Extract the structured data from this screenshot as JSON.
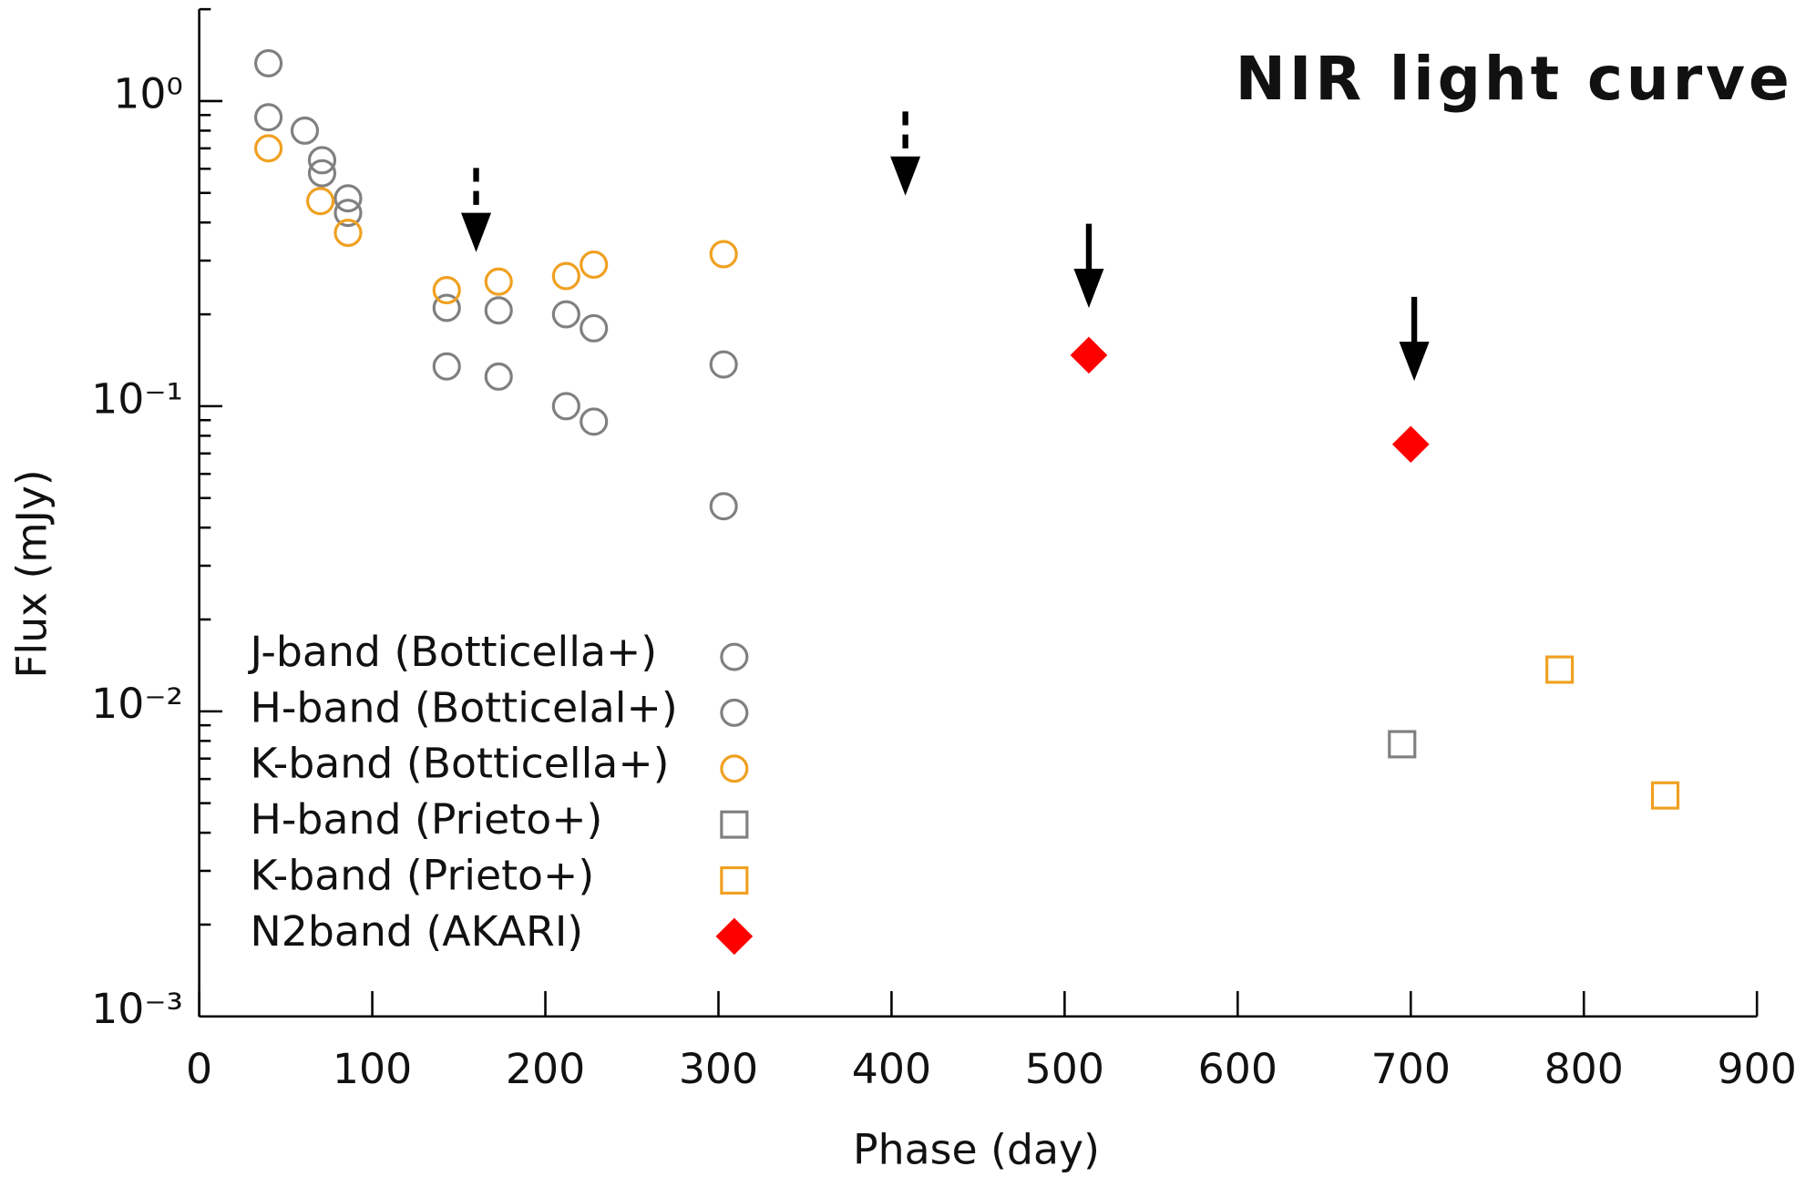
{
  "chart_data": {
    "type": "scatter",
    "title": "NIR light curve",
    "xlabel": "Phase (day)",
    "ylabel": "Flux (mJy)",
    "xlim": [
      0,
      900
    ],
    "xticks": [
      0,
      100,
      200,
      300,
      400,
      500,
      600,
      700,
      800,
      900
    ],
    "ylim": [
      0.001,
      2
    ],
    "yscale": "log",
    "yticks": [
      {
        "value": 1,
        "label": "10⁰"
      },
      {
        "value": 0.1,
        "label": "10⁻¹"
      },
      {
        "value": 0.01,
        "label": "10⁻²"
      },
      {
        "value": 0.001,
        "label": "10⁻³"
      }
    ],
    "yminorticks": [
      0.002,
      0.003,
      0.004,
      0.005,
      0.006,
      0.007,
      0.008,
      0.009,
      0.02,
      0.03,
      0.04,
      0.05,
      0.06,
      0.07,
      0.08,
      0.09,
      0.2,
      0.3,
      0.4,
      0.5,
      0.6,
      0.7,
      0.8,
      0.9,
      2
    ],
    "legend": "lower left",
    "series": [
      {
        "name": "J-band (Botticella+)",
        "color": "#808080",
        "marker": "circle",
        "x": [
          40,
          61,
          71,
          86,
          143,
          173,
          212,
          228,
          303
        ],
        "values": [
          1.33,
          0.8,
          0.64,
          0.48,
          0.21,
          0.206,
          0.2,
          0.18,
          0.137
        ]
      },
      {
        "name": "H-band (Botticelal+)",
        "color": "#808080",
        "marker": "circle",
        "x": [
          40,
          71,
          86,
          143,
          173,
          212,
          228,
          303
        ],
        "values": [
          0.885,
          0.58,
          0.43,
          0.135,
          0.125,
          0.1,
          0.089,
          0.047
        ]
      },
      {
        "name": "K-band (Botticella+)",
        "color": "#f0a020",
        "marker": "circle",
        "x": [
          40,
          70,
          86,
          143,
          173,
          212,
          228,
          303
        ],
        "values": [
          0.7,
          0.47,
          0.37,
          0.24,
          0.256,
          0.267,
          0.291,
          0.315
        ]
      },
      {
        "name": "H-band (Prieto+)",
        "color": "#808080",
        "marker": "square",
        "x": [
          695
        ],
        "values": [
          0.0078
        ]
      },
      {
        "name": "K-band (Prieto+)",
        "color": "#f0a020",
        "marker": "square",
        "x": [
          786,
          847
        ],
        "values": [
          0.0137,
          0.0053
        ]
      },
      {
        "name": "N2band (AKARI)",
        "color": "#ff0000",
        "marker": "diamond",
        "x": [
          514,
          700
        ],
        "values": [
          0.147,
          0.075
        ]
      }
    ],
    "upper_limits": {
      "color": "#000000",
      "x": [
        160,
        408,
        514,
        702
      ],
      "values": [
        0.32,
        0.49,
        0.21,
        0.121
      ],
      "dashed": [
        true,
        true,
        false,
        false
      ]
    }
  }
}
